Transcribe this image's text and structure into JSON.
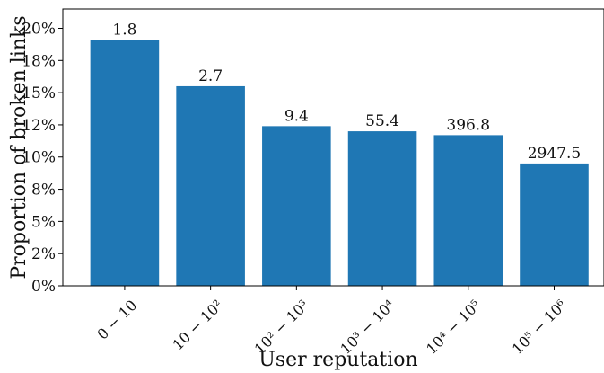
{
  "chart_data": {
    "type": "bar",
    "xlabel": "User reputation",
    "ylabel": "Proportion of broken links",
    "categories": [
      "0 − 10",
      "10 − 10²",
      "10² − 10³",
      "10³ − 10⁴",
      "10⁴ − 10⁵",
      "10⁵ − 10⁶"
    ],
    "values": [
      0.191,
      0.155,
      0.124,
      0.12,
      0.117,
      0.095
    ],
    "bar_labels": [
      "1.8",
      "2.7",
      "9.4",
      "55.4",
      "396.8",
      "2947.5"
    ],
    "ylim": [
      0,
      0.215
    ],
    "yticks": [
      0,
      0.025,
      0.05,
      0.075,
      0.1,
      0.125,
      0.15,
      0.175,
      0.2
    ],
    "ytick_labels": [
      "0%",
      "2%",
      "5%",
      "8%",
      "10%",
      "12%",
      "15%",
      "18%",
      "20%"
    ],
    "grid": false,
    "bar_color": "#1f77b4"
  }
}
